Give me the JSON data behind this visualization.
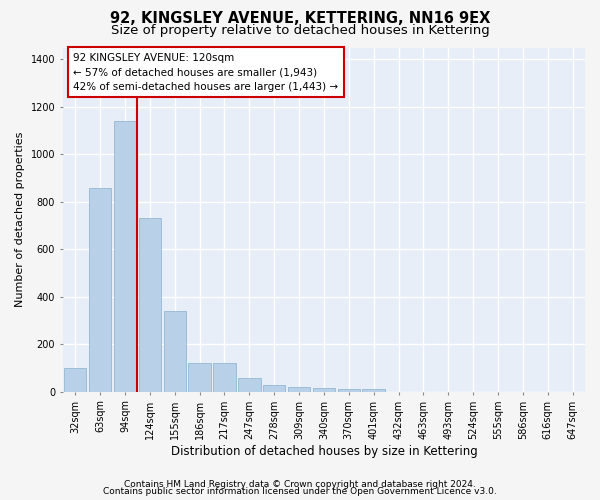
{
  "title1": "92, KINGSLEY AVENUE, KETTERING, NN16 9EX",
  "title2": "Size of property relative to detached houses in Kettering",
  "xlabel": "Distribution of detached houses by size in Kettering",
  "ylabel": "Number of detached properties",
  "categories": [
    "32sqm",
    "63sqm",
    "94sqm",
    "124sqm",
    "155sqm",
    "186sqm",
    "217sqm",
    "247sqm",
    "278sqm",
    "309sqm",
    "340sqm",
    "370sqm",
    "401sqm",
    "432sqm",
    "463sqm",
    "493sqm",
    "524sqm",
    "555sqm",
    "586sqm",
    "616sqm",
    "647sqm"
  ],
  "values": [
    100,
    860,
    1140,
    730,
    340,
    120,
    120,
    60,
    30,
    20,
    15,
    10,
    10,
    0,
    0,
    0,
    0,
    0,
    0,
    0,
    0
  ],
  "bar_color": "#b8d0e8",
  "bar_edge_color": "#8ab0cc",
  "vline_color": "#cc0000",
  "vline_xindex": 3,
  "annotation_text_line1": "92 KINGSLEY AVENUE: 120sqm",
  "annotation_text_line2": "← 57% of detached houses are smaller (1,943)",
  "annotation_text_line3": "42% of semi-detached houses are larger (1,443) →",
  "annotation_box_color": "#ffffff",
  "annotation_box_edge": "#cc0000",
  "ylim": [
    0,
    1450
  ],
  "yticks": [
    0,
    200,
    400,
    600,
    800,
    1000,
    1200,
    1400
  ],
  "background_color": "#e8eef8",
  "grid_color": "#ffffff",
  "fig_bg_color": "#f5f5f5",
  "footer1": "Contains HM Land Registry data © Crown copyright and database right 2024.",
  "footer2": "Contains public sector information licensed under the Open Government Licence v3.0.",
  "title1_fontsize": 10.5,
  "title2_fontsize": 9.5,
  "xlabel_fontsize": 8.5,
  "ylabel_fontsize": 8,
  "tick_fontsize": 7,
  "annot_fontsize": 7.5,
  "footer_fontsize": 6.5
}
